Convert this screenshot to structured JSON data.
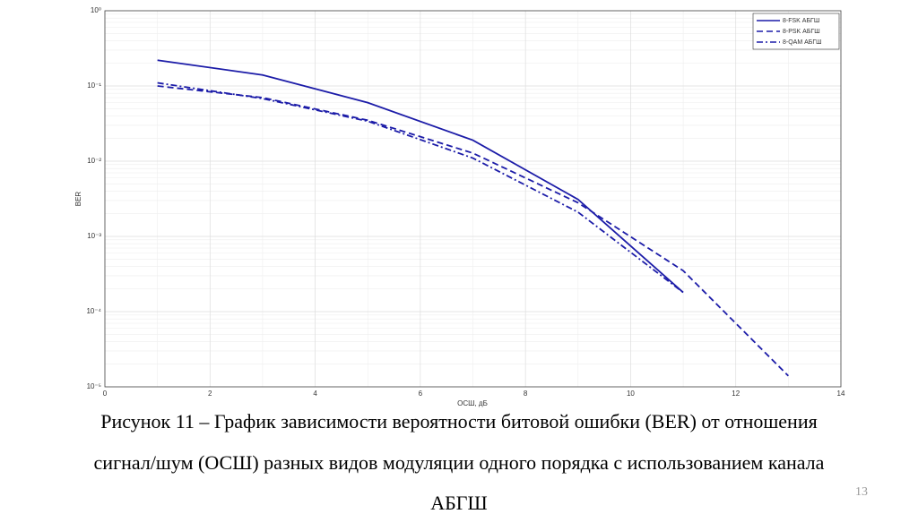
{
  "chart_data": {
    "type": "line",
    "x": [
      1,
      3,
      5,
      7,
      9,
      11,
      13
    ],
    "series": [
      {
        "name": "8-FSK АБГШ",
        "color": "#1c1ca8",
        "linestyle": "solid",
        "values": [
          0.22,
          0.14,
          0.06,
          0.019,
          0.0031,
          0.00018,
          null
        ]
      },
      {
        "name": "8-PSK АБГШ",
        "color": "#1c1ca8",
        "linestyle": "dashed",
        "values": [
          0.1,
          0.07,
          0.035,
          0.0128,
          0.0028,
          0.00035,
          1.4e-05
        ]
      },
      {
        "name": "8-QAM АБГШ",
        "color": "#1c1ca8",
        "linestyle": "dashdot",
        "values": [
          0.11,
          0.068,
          0.034,
          0.011,
          0.0021,
          0.00018,
          null
        ]
      }
    ],
    "xlabel": "ОСШ, дБ",
    "ylabel": "BER",
    "xlim": [
      0,
      14
    ],
    "xticks": [
      0,
      2,
      4,
      6,
      8,
      10,
      12,
      14
    ],
    "ylim": [
      1e-05,
      1
    ],
    "ylog": true,
    "yticks": [
      {
        "value": 1e-05,
        "label": "10⁻⁵"
      },
      {
        "value": 0.0001,
        "label": "10⁻⁴"
      },
      {
        "value": 0.001,
        "label": "10⁻³"
      },
      {
        "value": 0.01,
        "label": "10⁻²"
      },
      {
        "value": 0.1,
        "label": "10⁻¹"
      },
      {
        "value": 1,
        "label": "10⁰"
      }
    ],
    "grid": true,
    "minor_grid": true,
    "legend": "upper right"
  },
  "caption": [
    "Рисунок 11 – График зависимости вероятности битовой ошибки (BER) от отношения",
    "сигнал/шум (ОСШ) разных видов модуляции одного порядка с использованием канала",
    "АБГШ"
  ],
  "page_number": "13"
}
